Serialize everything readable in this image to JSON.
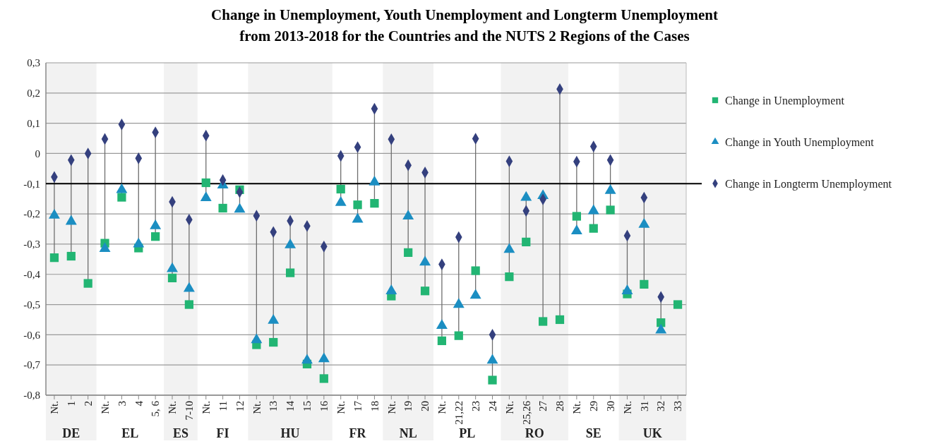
{
  "chart_data": {
    "type": "scatter",
    "title": "Change in Unemployment, Youth Unemployment and Longterm Unemployment\nfrom 2013-2018 for the Countries and the NUTS 2 Regions of the Cases",
    "categories": [
      "Nt.",
      "1",
      "2",
      "Nt.",
      "3",
      "4",
      "5, 6",
      "Nt.",
      "7-10",
      "Nt.",
      "11",
      "12",
      "Nt.",
      "13",
      "14",
      "15",
      "16",
      "Nt.",
      "17",
      "18",
      "Nt.",
      "19",
      "20",
      "Nt.",
      "21,22",
      "23",
      "24",
      "Nt.",
      "25,26",
      "27",
      "28",
      "Nt.",
      "29",
      "30",
      "Nt.",
      "31",
      "32",
      "33"
    ],
    "series": [
      {
        "name": "Change in Unemployment",
        "color": "#22b573",
        "marker": "square",
        "values": [
          -0.345,
          -0.34,
          -0.43,
          -0.297,
          -0.145,
          -0.313,
          -0.275,
          -0.412,
          -0.5,
          -0.097,
          -0.181,
          -0.12,
          -0.633,
          -0.625,
          -0.395,
          -0.697,
          -0.745,
          -0.118,
          -0.17,
          -0.165,
          -0.472,
          -0.328,
          -0.455,
          -0.62,
          -0.603,
          -0.388,
          -0.75,
          -0.408,
          -0.293,
          -0.556,
          -0.55,
          -0.208,
          -0.248,
          -0.187,
          -0.465,
          -0.433,
          -0.56,
          -0.5
        ]
      },
      {
        "name": "Change in Youth Unemployment",
        "color": "#1b8ec2",
        "marker": "triangle",
        "values": [
          -0.205,
          -0.225,
          null,
          -0.315,
          -0.12,
          -0.3,
          -0.24,
          -0.382,
          -0.447,
          -0.147,
          -0.105,
          -0.185,
          -0.617,
          -0.553,
          -0.303,
          -0.685,
          -0.68,
          -0.163,
          -0.218,
          -0.095,
          -0.455,
          -0.208,
          -0.36,
          -0.57,
          -0.5,
          -0.47,
          -0.685,
          -0.318,
          -0.146,
          -0.14,
          null,
          -0.257,
          -0.19,
          -0.123,
          -0.455,
          -0.235,
          -0.585,
          null
        ]
      },
      {
        "name": "Change in Longterm Unemployment",
        "color": "#34407e",
        "marker": "diamond",
        "values": [
          -0.078,
          -0.022,
          0.0,
          0.048,
          0.096,
          -0.016,
          0.07,
          -0.16,
          -0.219,
          0.059,
          -0.088,
          -0.128,
          -0.206,
          -0.26,
          -0.223,
          -0.24,
          -0.308,
          -0.008,
          0.021,
          0.148,
          0.047,
          -0.039,
          -0.063,
          -0.367,
          -0.277,
          0.049,
          -0.6,
          -0.026,
          -0.19,
          -0.152,
          0.213,
          -0.027,
          0.023,
          -0.022,
          -0.272,
          -0.146,
          -0.475,
          null
        ]
      }
    ],
    "ylim": [
      -0.8,
      0.3
    ],
    "yticks": [
      {
        "value": -0.8,
        "label": "-0,8"
      },
      {
        "value": -0.7,
        "label": "-0,7"
      },
      {
        "value": -0.6,
        "label": "-0,6"
      },
      {
        "value": -0.5,
        "label": "-0,5"
      },
      {
        "value": -0.4,
        "label": "-0,4"
      },
      {
        "value": -0.3,
        "label": "-0,3"
      },
      {
        "value": -0.2,
        "label": "-0,2"
      },
      {
        "value": -0.1,
        "label": "-0,1"
      },
      0,
      {
        "value": 0.1,
        "label": "0,1"
      },
      {
        "value": 0.2,
        "label": "0,2"
      },
      {
        "value": 0.3,
        "label": "0,3"
      }
    ],
    "grid": "y",
    "legend": "right",
    "ref_lines": [
      {
        "axis": "y",
        "value": -0.1,
        "color": "#000000"
      }
    ],
    "annotations": [
      "DE",
      "EL",
      "ES",
      "FI",
      "HU",
      "FR",
      "NL",
      "PL",
      "RO",
      "SE",
      "UK"
    ]
  }
}
